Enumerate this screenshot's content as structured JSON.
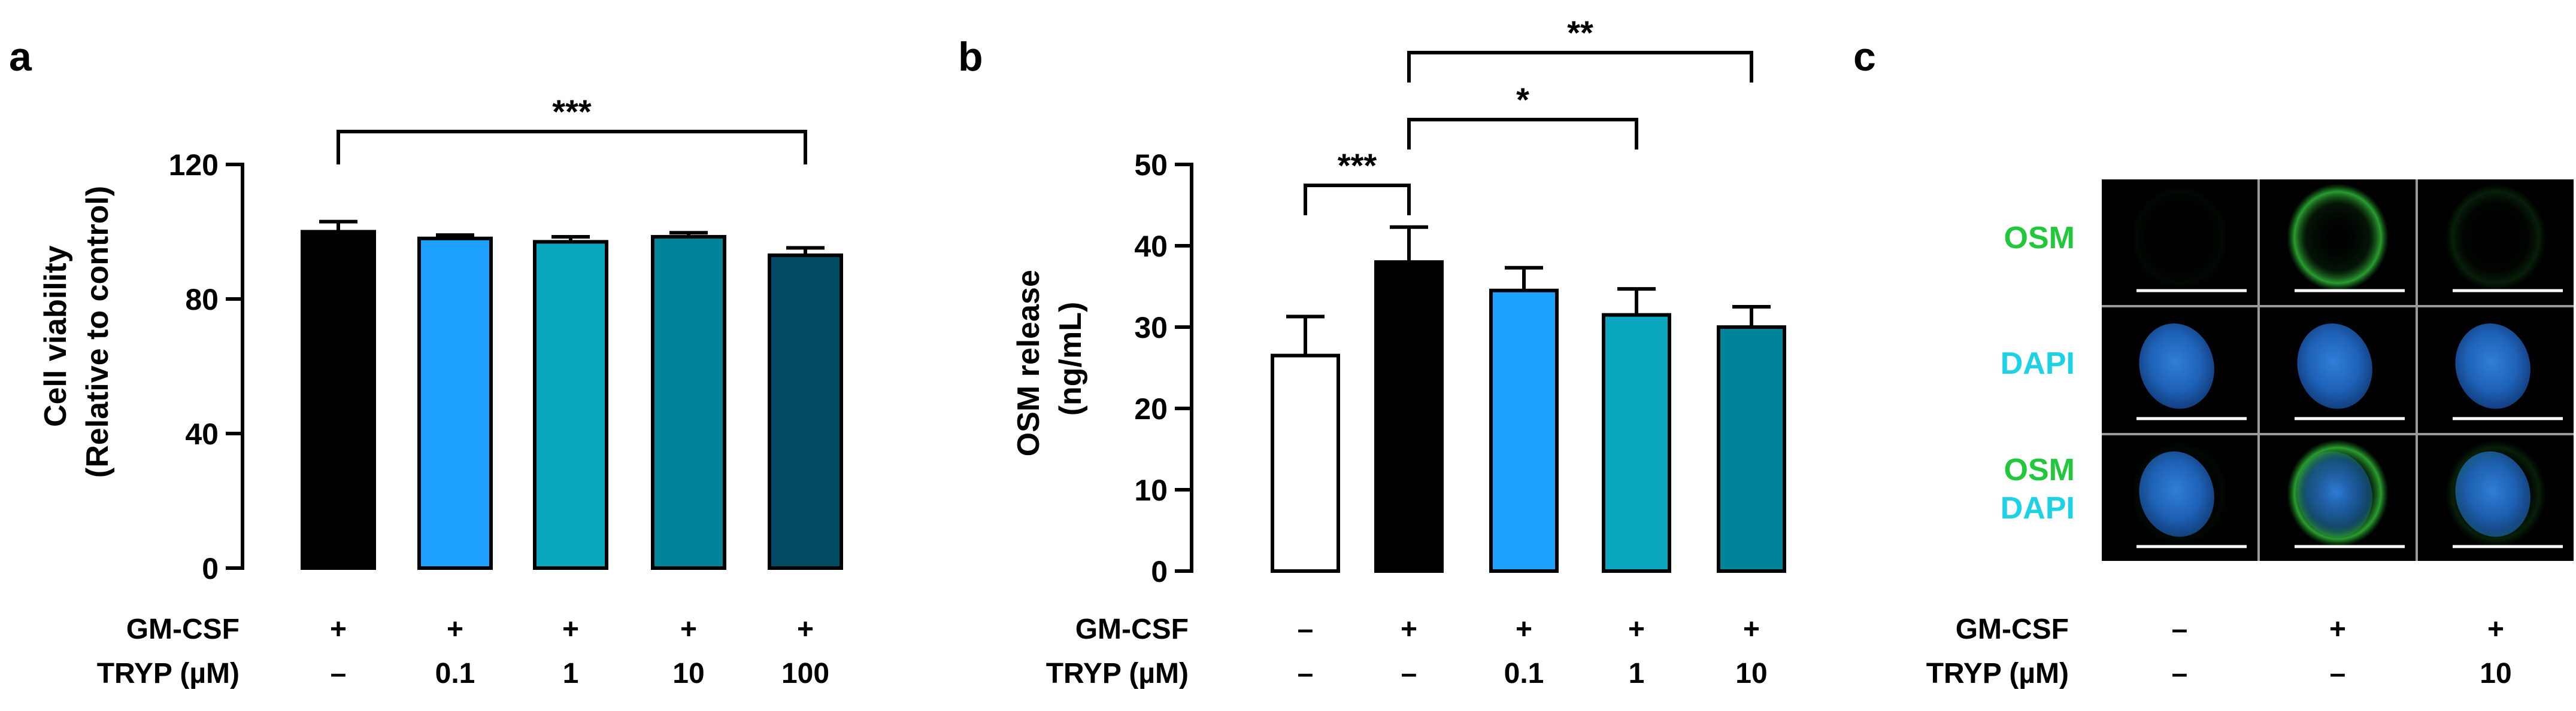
{
  "chart_data": [
    {
      "panel_label": "a",
      "type": "bar",
      "ylabel_lines": [
        "Cell viability",
        "(Relative to control)"
      ],
      "ylim": [
        0,
        120
      ],
      "yticks": [
        0,
        40,
        80,
        120
      ],
      "series": [
        {
          "name": "Cell viability",
          "values": [
            100,
            98,
            97,
            98.5,
            93
          ],
          "errors": [
            3,
            1,
            1.5,
            1.2,
            2.2
          ],
          "colors": [
            "#000000",
            "#1ea0ff",
            "#0aa6bf",
            "#008499",
            "#004b61"
          ]
        }
      ],
      "row_labels": [
        "GM-CSF",
        "TRYP (µM)"
      ],
      "row_values": [
        [
          "+",
          "+",
          "+",
          "+",
          "+"
        ],
        [
          "–",
          "0.1",
          "1",
          "10",
          "100"
        ]
      ],
      "significance": [
        {
          "from": 0,
          "to": 4,
          "label": "***"
        }
      ]
    },
    {
      "panel_label": "b",
      "type": "bar",
      "ylabel_lines": [
        "OSM release",
        "(ng/mL)"
      ],
      "ylim": [
        0,
        50
      ],
      "yticks": [
        0,
        10,
        20,
        30,
        40,
        50
      ],
      "series": [
        {
          "name": "OSM release",
          "values": [
            26.5,
            38,
            34.5,
            31.5,
            30
          ],
          "errors": [
            4.8,
            4.3,
            2.8,
            3.2,
            2.5
          ],
          "colors": [
            "#ffffff",
            "#000000",
            "#1ea0ff",
            "#0aa6bf",
            "#008499"
          ]
        }
      ],
      "row_labels": [
        "GM-CSF",
        "TRYP (µM)"
      ],
      "row_values": [
        [
          "–",
          "+",
          "+",
          "+",
          "+"
        ],
        [
          "–",
          "–",
          "0.1",
          "1",
          "10"
        ]
      ],
      "significance": [
        {
          "from": 0,
          "to": 1,
          "label": "***"
        },
        {
          "from": 1,
          "to": 3,
          "label": "*"
        },
        {
          "from": 1,
          "to": 4,
          "label": "**"
        }
      ]
    }
  ],
  "panel_c": {
    "panel_label": "c",
    "channels": [
      {
        "lines": [
          "OSM"
        ],
        "colors": [
          "#22c83c"
        ]
      },
      {
        "lines": [
          "DAPI"
        ],
        "colors": [
          "#1ed2e6"
        ]
      },
      {
        "lines": [
          "OSM",
          "DAPI"
        ],
        "colors": [
          "#22c83c",
          "#1ed2e6"
        ]
      }
    ],
    "row_labels": [
      "GM-CSF",
      "TRYP (µM)"
    ],
    "row_values": [
      [
        "–",
        "+",
        "+"
      ],
      [
        "–",
        "–",
        "10"
      ]
    ],
    "osm_intensity": [
      0.05,
      1.0,
      0.2
    ]
  }
}
